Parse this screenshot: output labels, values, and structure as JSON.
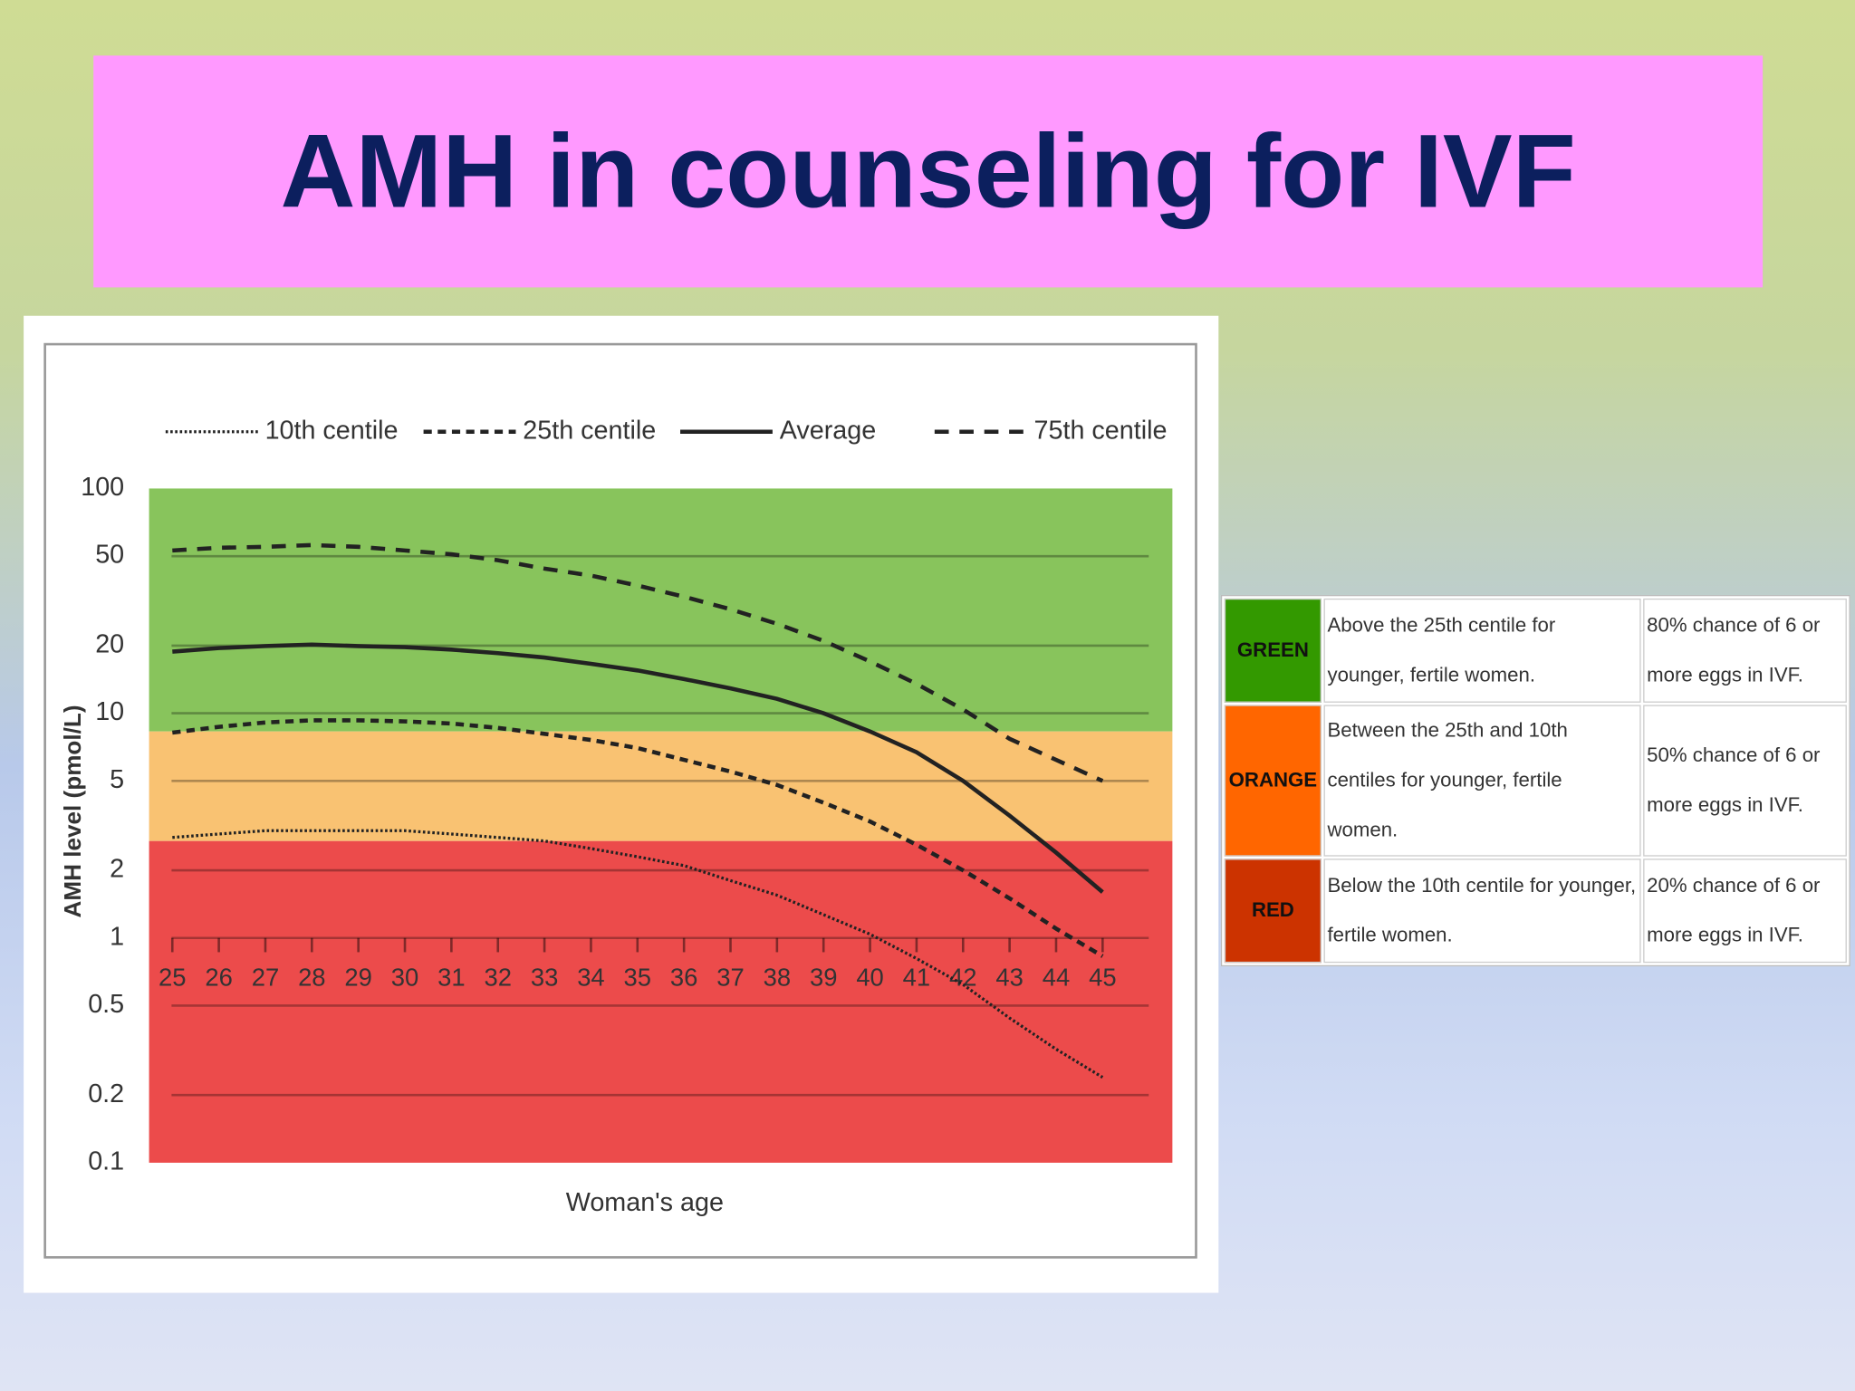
{
  "title": "AMH in counseling for IVF",
  "chart_data": {
    "type": "line",
    "x_label": "Woman's age",
    "y_label": "AMH level (pmol/L)",
    "x": [
      25,
      26,
      27,
      28,
      29,
      30,
      31,
      32,
      33,
      34,
      35,
      36,
      37,
      38,
      39,
      40,
      41,
      42,
      43,
      44,
      45
    ],
    "xlim": [
      24.5,
      46.5
    ],
    "xticks": [
      25,
      26,
      27,
      28,
      29,
      30,
      31,
      32,
      33,
      34,
      35,
      36,
      37,
      38,
      39,
      40,
      41,
      42,
      43,
      44,
      45
    ],
    "ylim": [
      0.1,
      100
    ],
    "log_y": true,
    "yticks": [
      100,
      50,
      20,
      10,
      5,
      2,
      1,
      0.5,
      0.2,
      0.1
    ],
    "grid": true,
    "bands": [
      {
        "from": 100,
        "to": 8.3,
        "color": "#88c45c"
      },
      {
        "from": 8.3,
        "to": 2.7,
        "color": "#f9c272"
      },
      {
        "from": 2.7,
        "to": 0.1,
        "color": "#ec4b4b"
      }
    ],
    "series": [
      {
        "name": "10th centile",
        "color": "#222222",
        "dash": "dotted",
        "values": [
          2.8,
          2.9,
          3.0,
          3.0,
          3.0,
          3.0,
          2.9,
          2.8,
          2.7,
          2.5,
          2.3,
          2.1,
          1.8,
          1.55,
          1.27,
          1.04,
          0.81,
          0.62,
          0.44,
          0.32,
          0.24
        ]
      },
      {
        "name": "25th centile",
        "color": "#222222",
        "dash": "short",
        "values": [
          8.2,
          8.7,
          9.1,
          9.3,
          9.3,
          9.2,
          9.0,
          8.6,
          8.1,
          7.6,
          7.0,
          6.2,
          5.5,
          4.8,
          4.0,
          3.3,
          2.6,
          2.0,
          1.5,
          1.1,
          0.83
        ]
      },
      {
        "name": "Average",
        "color": "#222222",
        "dash": "solid",
        "values": [
          18.8,
          19.5,
          19.9,
          20.2,
          19.9,
          19.7,
          19.2,
          18.5,
          17.7,
          16.6,
          15.5,
          14.2,
          12.9,
          11.6,
          10,
          8.3,
          6.7,
          5.0,
          3.5,
          2.4,
          1.6
        ]
      },
      {
        "name": "75th centile",
        "color": "#222222",
        "dash": "long",
        "values": [
          53,
          54.5,
          55,
          56,
          55,
          53,
          51,
          48,
          44,
          41,
          37,
          33,
          29,
          25,
          21,
          17,
          13.5,
          10.4,
          7.7,
          6.2,
          5.0
        ]
      }
    ]
  },
  "table": {
    "rows": [
      {
        "color": "#339900",
        "cells": [
          "GREEN",
          "Above the 25th centile for younger, fertile women.",
          "80% chance of 6 or more eggs in IVF."
        ]
      },
      {
        "color": "#ff6600",
        "cells": [
          "ORANGE",
          "Between the 25th and 10th centiles for younger, fertile women.",
          "50% chance of 6 or more eggs in IVF."
        ]
      },
      {
        "color": "#cc3300",
        "cells": [
          "RED",
          "Below the 10th centile for younger, fertile women.",
          "20% chance of 6 or more eggs in IVF."
        ]
      }
    ]
  }
}
